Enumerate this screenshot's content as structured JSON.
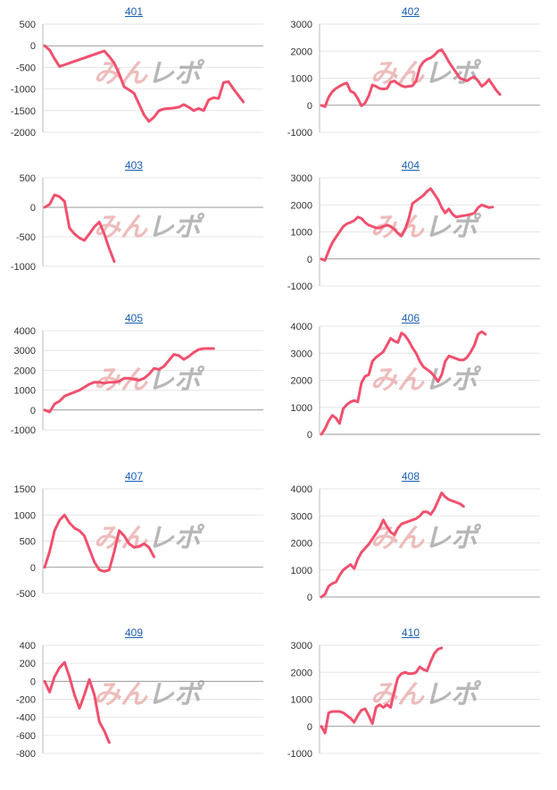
{
  "watermark": {
    "part1": "みんレポ",
    "part2": ""
  },
  "colors": {
    "line": "#f0506e",
    "grid": "#e6e6e6",
    "axis": "#bbbbbb",
    "title": "#1a5fb4"
  },
  "chart_data": [
    {
      "type": "line",
      "title": "401",
      "yticks": [
        500,
        0,
        -500,
        -1000,
        -1500,
        -2000
      ],
      "ylim": [
        -2000,
        500
      ],
      "x": [
        0,
        1,
        2,
        3,
        4,
        5,
        6,
        7,
        8,
        9,
        10,
        11,
        12,
        13,
        14,
        15,
        16,
        17,
        18,
        19,
        20,
        21,
        22,
        23,
        24,
        25,
        26,
        27,
        28,
        29,
        30,
        31,
        32,
        33,
        34,
        35,
        36,
        37,
        38,
        39,
        40,
        41,
        42,
        43,
        44
      ],
      "values": [
        0,
        -100,
        -300,
        -480,
        -440,
        -400,
        -360,
        -320,
        -280,
        -240,
        -200,
        -160,
        -120,
        -250,
        -400,
        -650,
        -950,
        -1020,
        -1100,
        -1350,
        -1600,
        -1750,
        -1650,
        -1500,
        -1460,
        -1450,
        -1440,
        -1420,
        -1360,
        -1420,
        -1500,
        -1450,
        -1500,
        -1250,
        -1200,
        -1220,
        -850,
        -830,
        -1000,
        -1150,
        -1300,
        null,
        null,
        null,
        null
      ]
    },
    {
      "type": "line",
      "title": "402",
      "yticks": [
        3000,
        2000,
        1000,
        0,
        -1000
      ],
      "ylim": [
        -1000,
        3000
      ],
      "x": [
        0,
        1,
        2,
        3,
        4,
        5,
        6,
        7,
        8,
        9,
        10,
        11,
        12,
        13,
        14,
        15,
        16,
        17,
        18,
        19,
        20,
        21,
        22,
        23,
        24,
        25,
        26,
        27,
        28,
        29,
        30,
        31,
        32,
        33,
        34,
        35,
        36,
        37,
        38,
        39,
        40,
        41,
        42,
        43,
        44,
        45,
        46,
        47,
        48,
        49,
        50,
        51,
        52,
        53,
        54,
        55,
        56,
        57,
        58,
        59,
        60
      ],
      "values": [
        0,
        -50,
        300,
        500,
        620,
        700,
        780,
        820,
        520,
        450,
        250,
        -20,
        80,
        350,
        750,
        700,
        620,
        600,
        620,
        850,
        900,
        800,
        720,
        680,
        700,
        720,
        900,
        1400,
        1600,
        1700,
        1750,
        1850,
        2000,
        2050,
        1850,
        1600,
        1400,
        1200,
        1000,
        950,
        900,
        1000,
        1050,
        900,
        700,
        800,
        950,
        750,
        550,
        400,
        null,
        null,
        null,
        null,
        null,
        null,
        null,
        null,
        null,
        null,
        null
      ]
    },
    {
      "type": "line",
      "title": "403",
      "yticks": [
        500,
        0,
        -500,
        -1000
      ],
      "ylim": [
        -1000,
        500
      ],
      "x": [
        0,
        1,
        2,
        3,
        4,
        5,
        6,
        7,
        8,
        9,
        10,
        11,
        12,
        13,
        14,
        15,
        16,
        17,
        18,
        19,
        20
      ],
      "values": [
        0,
        50,
        210,
        180,
        100,
        -350,
        -450,
        -520,
        -560,
        -450,
        -330,
        -250,
        -450,
        -700,
        -920,
        null,
        null,
        null,
        null,
        null,
        null
      ]
    },
    {
      "type": "line",
      "title": "404",
      "yticks": [
        3000,
        2000,
        1000,
        0,
        -1000
      ],
      "ylim": [
        -1000,
        3000
      ],
      "x": [
        0,
        1,
        2,
        3,
        4,
        5,
        6,
        7,
        8,
        9,
        10,
        11,
        12,
        13,
        14,
        15,
        16,
        17,
        18,
        19,
        20,
        21,
        22,
        23,
        24,
        25,
        26,
        27,
        28,
        29,
        30,
        31,
        32,
        33,
        34,
        35,
        36,
        37,
        38,
        39,
        40,
        41,
        42,
        43,
        44,
        45,
        46,
        47,
        48,
        49,
        50,
        51,
        52,
        53,
        54,
        55,
        56,
        57,
        58,
        59,
        60
      ],
      "values": [
        0,
        -50,
        300,
        600,
        800,
        1000,
        1200,
        1300,
        1350,
        1420,
        1550,
        1500,
        1350,
        1250,
        1200,
        1150,
        1150,
        1200,
        1250,
        1200,
        1100,
        950,
        850,
        1100,
        1500,
        2050,
        2150,
        2250,
        2350,
        2500,
        2600,
        2400,
        2200,
        1900,
        1700,
        1850,
        1650,
        1550,
        1580,
        1600,
        1620,
        1650,
        1700,
        1900,
        2000,
        1950,
        1900,
        1920,
        null,
        null,
        null,
        null,
        null,
        null,
        null,
        null,
        null,
        null,
        null,
        null,
        null
      ]
    },
    {
      "type": "line",
      "title": "405",
      "yticks": [
        4000,
        3000,
        2000,
        1000,
        0,
        -1000
      ],
      "ylim": [
        -1000,
        4000
      ],
      "x": [
        0,
        1,
        2,
        3,
        4,
        5,
        6,
        7,
        8,
        9,
        10,
        11,
        12,
        13,
        14,
        15,
        16,
        17,
        18,
        19,
        20,
        21,
        22,
        23,
        24,
        25,
        26,
        27,
        28,
        29,
        30,
        31,
        32,
        33,
        34,
        35,
        36,
        37,
        38,
        39,
        40,
        41,
        42,
        43,
        44
      ],
      "values": [
        0,
        -100,
        300,
        450,
        700,
        800,
        900,
        1000,
        1150,
        1300,
        1400,
        1400,
        1350,
        1400,
        1400,
        1450,
        1600,
        1600,
        1550,
        1500,
        1600,
        1800,
        2100,
        2050,
        2200,
        2500,
        2800,
        2750,
        2550,
        2700,
        2900,
        3050,
        3100,
        3100,
        3100,
        null,
        null,
        null,
        null,
        null,
        null,
        null,
        null,
        null,
        null
      ]
    },
    {
      "type": "line",
      "title": "406",
      "yticks": [
        4000,
        3000,
        2000,
        1000,
        0
      ],
      "ylim": [
        0,
        4000
      ],
      "x": [
        0,
        1,
        2,
        3,
        4,
        5,
        6,
        7,
        8,
        9,
        10,
        11,
        12,
        13,
        14,
        15,
        16,
        17,
        18,
        19,
        20,
        21,
        22,
        23,
        24,
        25,
        26,
        27,
        28,
        29,
        30,
        31,
        32,
        33,
        34,
        35,
        36,
        37,
        38,
        39,
        40,
        41,
        42,
        43,
        44,
        45,
        46,
        47,
        48,
        49,
        50,
        51,
        52,
        53,
        54,
        55,
        56,
        57,
        58,
        59,
        60
      ],
      "values": [
        0,
        200,
        500,
        700,
        600,
        400,
        950,
        1100,
        1200,
        1250,
        1200,
        1900,
        2150,
        2200,
        2700,
        2850,
        2950,
        3050,
        3300,
        3550,
        3450,
        3400,
        3750,
        3650,
        3450,
        3200,
        3000,
        2700,
        2500,
        2400,
        2300,
        2150,
        1950,
        2200,
        2700,
        2900,
        2850,
        2800,
        2750,
        2750,
        2850,
        3050,
        3300,
        3700,
        3800,
        3700,
        null,
        null,
        null,
        null,
        null,
        null,
        null,
        null,
        null,
        null,
        null,
        null,
        null,
        null,
        null
      ]
    },
    {
      "type": "line",
      "title": "407",
      "yticks": [
        1500,
        1000,
        500,
        0,
        -500
      ],
      "ylim": [
        -500,
        1500
      ],
      "x": [
        0,
        1,
        2,
        3,
        4,
        5,
        6,
        7,
        8,
        9,
        10,
        11,
        12,
        13,
        14,
        15,
        16,
        17,
        18,
        19,
        20,
        21,
        22,
        23,
        24,
        25,
        26,
        27,
        28,
        29,
        30,
        31,
        32,
        33,
        34,
        35,
        36,
        37,
        38,
        39,
        40,
        41,
        42,
        43,
        44
      ],
      "values": [
        0,
        300,
        700,
        900,
        1000,
        850,
        750,
        700,
        600,
        350,
        100,
        -50,
        -80,
        -50,
        300,
        700,
        600,
        450,
        380,
        400,
        450,
        380,
        200,
        null,
        null,
        null,
        null,
        null,
        null,
        null,
        null,
        null,
        null,
        null,
        null,
        null,
        null,
        null,
        null,
        null,
        null,
        null,
        null,
        null,
        null
      ]
    },
    {
      "type": "line",
      "title": "408",
      "yticks": [
        4000,
        3000,
        2000,
        1000,
        0
      ],
      "ylim": [
        0,
        4000
      ],
      "x": [
        0,
        1,
        2,
        3,
        4,
        5,
        6,
        7,
        8,
        9,
        10,
        11,
        12,
        13,
        14,
        15,
        16,
        17,
        18,
        19,
        20,
        21,
        22,
        23,
        24,
        25,
        26,
        27,
        28,
        29,
        30,
        31,
        32,
        33,
        34,
        35,
        36,
        37,
        38,
        39,
        40,
        41,
        42,
        43,
        44,
        45,
        46,
        47,
        48,
        49,
        50,
        51,
        52,
        53,
        54,
        55,
        56,
        57,
        58,
        59,
        60
      ],
      "values": [
        0,
        100,
        400,
        500,
        550,
        800,
        1000,
        1100,
        1200,
        1050,
        1400,
        1650,
        1800,
        1950,
        2150,
        2350,
        2550,
        2850,
        2600,
        2400,
        2300,
        2550,
        2700,
        2750,
        2800,
        2850,
        2900,
        3000,
        3150,
        3150,
        3050,
        3250,
        3550,
        3850,
        3700,
        3600,
        3550,
        3500,
        3450,
        3350,
        null,
        null,
        null,
        null,
        null,
        null,
        null,
        null,
        null,
        null,
        null,
        null,
        null,
        null,
        null,
        null,
        null,
        null,
        null,
        null,
        null
      ]
    },
    {
      "type": "line",
      "title": "409",
      "yticks": [
        400,
        200,
        0,
        -200,
        -400,
        -600,
        -800
      ],
      "ylim": [
        -800,
        400
      ],
      "x": [
        0,
        1,
        2,
        3,
        4,
        5,
        6,
        7,
        8,
        9,
        10,
        11,
        12,
        13,
        14,
        15,
        16,
        17,
        18,
        19,
        20,
        21,
        22,
        23,
        24,
        25,
        26,
        27,
        28,
        29,
        30,
        31,
        32,
        33,
        34,
        35,
        36,
        37,
        38,
        39,
        40,
        41,
        42,
        43,
        44
      ],
      "values": [
        0,
        -120,
        50,
        150,
        210,
        50,
        -150,
        -300,
        -150,
        20,
        -150,
        -450,
        -550,
        -680,
        null,
        null,
        null,
        null,
        null,
        null,
        null,
        null,
        null,
        null,
        null,
        null,
        null,
        null,
        null,
        null,
        null,
        null,
        null,
        null,
        null,
        null,
        null,
        null,
        null,
        null,
        null,
        null,
        null,
        null,
        null
      ]
    },
    {
      "type": "line",
      "title": "410",
      "yticks": [
        3000,
        2000,
        1000,
        0,
        -1000
      ],
      "ylim": [
        -1000,
        3000
      ],
      "x": [
        0,
        1,
        2,
        3,
        4,
        5,
        6,
        7,
        8,
        9,
        10,
        11,
        12,
        13,
        14,
        15,
        16,
        17,
        18,
        19,
        20,
        21,
        22,
        23,
        24,
        25,
        26,
        27,
        28,
        29,
        30,
        31,
        32,
        33,
        34,
        35,
        36,
        37,
        38,
        39,
        40,
        41,
        42,
        43,
        44,
        45,
        46,
        47,
        48,
        49,
        50,
        51,
        52,
        53,
        54,
        55,
        56,
        57,
        58,
        59,
        60
      ],
      "values": [
        0,
        -250,
        500,
        550,
        550,
        550,
        500,
        400,
        300,
        150,
        400,
        600,
        650,
        400,
        100,
        700,
        800,
        700,
        800,
        700,
        1300,
        1800,
        1950,
        2000,
        1950,
        1950,
        2000,
        2200,
        2100,
        2050,
        2400,
        2700,
        2850,
        2900,
        null,
        null,
        null,
        null,
        null,
        null,
        null,
        null,
        null,
        null,
        null,
        null,
        null,
        null,
        null,
        null,
        null,
        null,
        null,
        null,
        null,
        null,
        null,
        null,
        null,
        null,
        null
      ]
    }
  ]
}
